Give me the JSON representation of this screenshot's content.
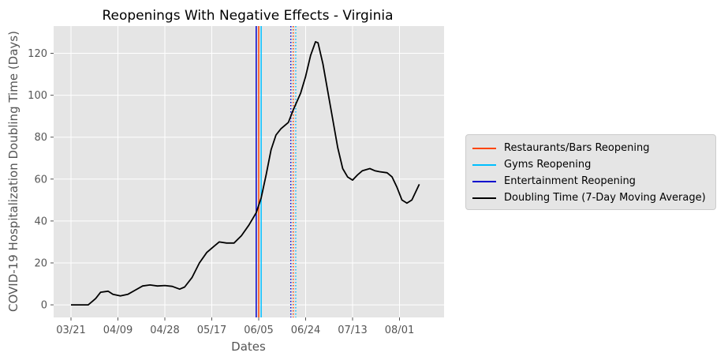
{
  "chart_data": {
    "type": "line",
    "title": "Reopenings With Negative Effects - Virginia",
    "xlabel": "Dates",
    "ylabel": "COVID-19 Hospitalization Doubling Time (Days)",
    "x_tick_labels": [
      "03/21",
      "04/09",
      "04/28",
      "05/17",
      "06/05",
      "06/24",
      "07/13",
      "08/01"
    ],
    "y_ticks": [
      0,
      20,
      40,
      60,
      80,
      100,
      120
    ],
    "ylim": [
      -6,
      133
    ],
    "grid": true,
    "legend_placement": "right",
    "x_start_date": "2020-03-21",
    "series": [
      {
        "name": "Doubling Time (7-Day Moving Average)",
        "color": "#000000",
        "style": "solid",
        "points": [
          [
            "03/21",
            0
          ],
          [
            "03/24",
            0
          ],
          [
            "03/28",
            0
          ],
          [
            "03/31",
            3
          ],
          [
            "04/02",
            6
          ],
          [
            "04/05",
            6.5
          ],
          [
            "04/07",
            5
          ],
          [
            "04/10",
            4.3
          ],
          [
            "04/13",
            5
          ],
          [
            "04/16",
            7
          ],
          [
            "04/19",
            9
          ],
          [
            "04/22",
            9.5
          ],
          [
            "04/25",
            9
          ],
          [
            "04/28",
            9.2
          ],
          [
            "05/01",
            8.8
          ],
          [
            "05/04",
            7.5
          ],
          [
            "05/06",
            8.5
          ],
          [
            "05/09",
            13
          ],
          [
            "05/12",
            20
          ],
          [
            "05/15",
            25
          ],
          [
            "05/18",
            28
          ],
          [
            "05/20",
            30
          ],
          [
            "05/23",
            29.5
          ],
          [
            "05/26",
            29.5
          ],
          [
            "05/29",
            33
          ],
          [
            "06/01",
            38
          ],
          [
            "06/04",
            44
          ],
          [
            "06/06",
            51
          ],
          [
            "06/08",
            62
          ],
          [
            "06/10",
            74
          ],
          [
            "06/12",
            81
          ],
          [
            "06/14",
            84
          ],
          [
            "06/17",
            87
          ],
          [
            "06/19",
            93
          ],
          [
            "06/22",
            101
          ],
          [
            "06/24",
            109
          ],
          [
            "06/26",
            119
          ],
          [
            "06/28",
            125.5
          ],
          [
            "06/29",
            125
          ],
          [
            "07/01",
            115
          ],
          [
            "07/04",
            95
          ],
          [
            "07/07",
            75
          ],
          [
            "07/09",
            65
          ],
          [
            "07/11",
            61
          ],
          [
            "07/13",
            59.5
          ],
          [
            "07/15",
            62
          ],
          [
            "07/17",
            64
          ],
          [
            "07/20",
            65
          ],
          [
            "07/22",
            64
          ],
          [
            "07/24",
            63.5
          ],
          [
            "07/27",
            63
          ],
          [
            "07/29",
            61
          ],
          [
            "07/31",
            56
          ],
          [
            "08/02",
            50
          ],
          [
            "08/04",
            48.5
          ],
          [
            "08/06",
            50
          ],
          [
            "08/09",
            57.5
          ]
        ]
      }
    ],
    "vlines": [
      {
        "name": "Restaurants/Bars Reopening",
        "date": "06/05",
        "color": "#ff4500",
        "style": "solid"
      },
      {
        "name": "Gyms Reopening",
        "date": "06/06",
        "color": "#00bfff",
        "style": "solid"
      },
      {
        "name": "Entertainment Reopening",
        "date": "06/04",
        "color": "#0000cd",
        "style": "solid"
      },
      {
        "name": "",
        "date": "06/18",
        "color": "#0000cd",
        "style": "dotted"
      },
      {
        "name": "",
        "date": "06/19",
        "color": "#ff4500",
        "style": "dotted"
      },
      {
        "name": "",
        "date": "06/20",
        "color": "#00bfff",
        "style": "dotted"
      }
    ],
    "legend": [
      {
        "label": "Restaurants/Bars Reopening",
        "color": "#ff4500"
      },
      {
        "label": "Gyms Reopening",
        "color": "#00bfff"
      },
      {
        "label": "Entertainment Reopening",
        "color": "#0000cd"
      },
      {
        "label": "Doubling Time (7-Day Moving Average)",
        "color": "#000000"
      }
    ]
  }
}
